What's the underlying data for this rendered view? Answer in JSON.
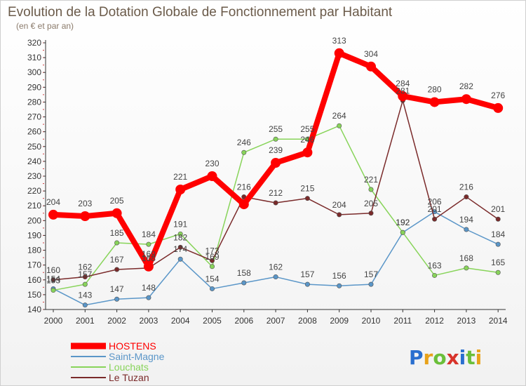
{
  "chart_data": {
    "type": "line",
    "title": "Evolution de la Dotation Globale de Fonctionnement par Habitant",
    "subtitle": "(en € et par an)",
    "x": [
      "2000",
      "2001",
      "2002",
      "2003",
      "2004",
      "2005",
      "2006",
      "2007",
      "2008",
      "2009",
      "2010",
      "2011",
      "2012",
      "2013",
      "2014"
    ],
    "ylim": [
      140,
      320
    ],
    "yticks": [
      140,
      150,
      160,
      170,
      180,
      190,
      200,
      210,
      220,
      230,
      240,
      250,
      260,
      270,
      280,
      290,
      300,
      310,
      320
    ],
    "grid": false,
    "legend": "bottom-left",
    "series": [
      {
        "name": "HOSTENS",
        "color": "#ff0000",
        "values": [
          204,
          203,
          205,
          169,
          221,
          230,
          211,
          239,
          246,
          313,
          304,
          284,
          280,
          282,
          276
        ],
        "labels": [
          "204",
          "203",
          "205",
          "169",
          "221",
          "230",
          "",
          "239",
          "246",
          "313",
          "304",
          "284",
          "280",
          "282",
          "276"
        ]
      },
      {
        "name": "Saint-Magne",
        "color": "#5a96c8",
        "values": [
          154,
          143,
          147,
          148,
          174,
          154,
          158,
          162,
          157,
          156,
          157,
          192,
          206,
          194,
          184
        ],
        "labels": [
          "154",
          "143",
          "147",
          "148",
          "174",
          "154",
          "158",
          "162",
          "157",
          "156",
          "157",
          "192",
          "206",
          "194",
          "184"
        ]
      },
      {
        "name": "Louchats",
        "color": "#88d45a",
        "values": [
          153,
          157,
          185,
          184,
          191,
          169,
          246,
          255,
          255,
          264,
          221,
          192,
          163,
          168,
          165
        ],
        "labels": [
          "153",
          "157",
          "185",
          "184",
          "191",
          "169",
          "246",
          "255",
          "255",
          "264",
          "221",
          "192",
          "163",
          "168",
          "165"
        ]
      },
      {
        "name": "Le Tuzan",
        "color": "#7a2a2a",
        "values": [
          160,
          162,
          167,
          168,
          182,
          173,
          216,
          212,
          215,
          204,
          205,
          281,
          201,
          216,
          201
        ],
        "labels": [
          "160",
          "162",
          "167",
          "168",
          "182",
          "173",
          "216",
          "212",
          "215",
          "204",
          "205",
          "281",
          "201",
          "216",
          "201"
        ]
      }
    ]
  },
  "logo": {
    "text": "Proxiti",
    "letters": [
      "P",
      "r",
      "o",
      "x",
      "i",
      "t",
      "i"
    ],
    "colors": [
      "#2a6fcf",
      "#e8a21a",
      "#6bbf3a",
      "#d8332a",
      "#2a6fcf",
      "#6bbf3a",
      "#e8a21a"
    ]
  }
}
